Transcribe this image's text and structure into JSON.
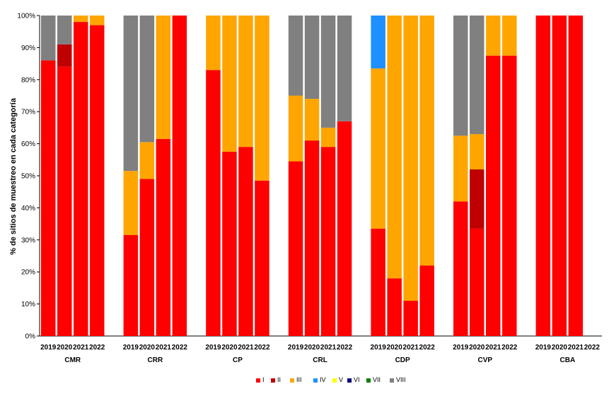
{
  "chart_data": {
    "type": "bar",
    "stacked": true,
    "title": "",
    "xlabel": "",
    "ylabel": "% de sitios de muestreo en cada categoría",
    "ylim": [
      0,
      100
    ],
    "y_ticks": [
      "0%",
      "10%",
      "20%",
      "30%",
      "40%",
      "50%",
      "60%",
      "70%",
      "80%",
      "90%",
      "100%"
    ],
    "grid": false,
    "legend_position": "bottom",
    "categories_order": [
      "I",
      "II",
      "III",
      "IV",
      "V",
      "VI",
      "VII",
      "VIII"
    ],
    "colors": {
      "I": "#ff0000",
      "II": "#c00000",
      "III": "#ffa500",
      "IV": "#1e90ff",
      "V": "#ffff00",
      "VI": "#000080",
      "VII": "#008000",
      "VIII": "#808080"
    },
    "legend": [
      {
        "key": "I",
        "label": "I"
      },
      {
        "key": "II",
        "label": "II"
      },
      {
        "key": "III",
        "label": "III"
      },
      {
        "key": "IV",
        "label": "IV"
      },
      {
        "key": "V",
        "label": "V"
      },
      {
        "key": "VI",
        "label": "VI"
      },
      {
        "key": "VII",
        "label": "VII"
      },
      {
        "key": "VIII",
        "label": "VIII"
      }
    ],
    "groups": [
      {
        "name": "CMR",
        "bars": [
          {
            "year": "2019",
            "I": 86,
            "II": 0,
            "III": 0,
            "IV": 0,
            "V": 0,
            "VI": 0,
            "VII": 0,
            "VIII": 14
          },
          {
            "year": "2020",
            "I": 84,
            "II": 7,
            "III": 0,
            "IV": 0,
            "V": 0,
            "VI": 0,
            "VII": 0,
            "VIII": 9
          },
          {
            "year": "2021",
            "I": 98,
            "II": 0,
            "III": 2,
            "IV": 0,
            "V": 0,
            "VI": 0,
            "VII": 0,
            "VIII": 0
          },
          {
            "year": "2022",
            "I": 97,
            "II": 0,
            "III": 3,
            "IV": 0,
            "V": 0,
            "VI": 0,
            "VII": 0,
            "VIII": 0
          }
        ]
      },
      {
        "name": "CRR",
        "bars": [
          {
            "year": "2019",
            "I": 31.5,
            "II": 0,
            "III": 20,
            "IV": 0,
            "V": 0,
            "VI": 0,
            "VII": 0,
            "VIII": 48.5
          },
          {
            "year": "2020",
            "I": 49,
            "II": 0,
            "III": 11.5,
            "IV": 0,
            "V": 0,
            "VI": 0,
            "VII": 0,
            "VIII": 39.5
          },
          {
            "year": "2021",
            "I": 61.5,
            "II": 0,
            "III": 38.5,
            "IV": 0,
            "V": 0,
            "VI": 0,
            "VII": 0,
            "VIII": 0
          },
          {
            "year": "2022",
            "I": 100,
            "II": 0,
            "III": 0,
            "IV": 0,
            "V": 0,
            "VI": 0,
            "VII": 0,
            "VIII": 0
          }
        ]
      },
      {
        "name": "CP",
        "bars": [
          {
            "year": "2019",
            "I": 83,
            "II": 0,
            "III": 17,
            "IV": 0,
            "V": 0,
            "VI": 0,
            "VII": 0,
            "VIII": 0
          },
          {
            "year": "2020",
            "I": 57.5,
            "II": 0,
            "III": 42.5,
            "IV": 0,
            "V": 0,
            "VI": 0,
            "VII": 0,
            "VIII": 0
          },
          {
            "year": "2021",
            "I": 59,
            "II": 0,
            "III": 41,
            "IV": 0,
            "V": 0,
            "VI": 0,
            "VII": 0,
            "VIII": 0
          },
          {
            "year": "2022",
            "I": 48.5,
            "II": 0,
            "III": 51.5,
            "IV": 0,
            "V": 0,
            "VI": 0,
            "VII": 0,
            "VIII": 0
          }
        ]
      },
      {
        "name": "CRL",
        "bars": [
          {
            "year": "2019",
            "I": 54.5,
            "II": 0,
            "III": 20.5,
            "IV": 0,
            "V": 0,
            "VI": 0,
            "VII": 0,
            "VIII": 25
          },
          {
            "year": "2020",
            "I": 61,
            "II": 0,
            "III": 13,
            "IV": 0,
            "V": 0,
            "VI": 0,
            "VII": 0,
            "VIII": 26
          },
          {
            "year": "2021",
            "I": 59,
            "II": 0,
            "III": 6,
            "IV": 0,
            "V": 0,
            "VI": 0,
            "VII": 0,
            "VIII": 35
          },
          {
            "year": "2022",
            "I": 67,
            "II": 0,
            "III": 0,
            "IV": 0,
            "V": 0,
            "VI": 0,
            "VII": 0,
            "VIII": 33
          }
        ]
      },
      {
        "name": "CDP",
        "bars": [
          {
            "year": "2019",
            "I": 33.5,
            "II": 0,
            "III": 50,
            "IV": 16.5,
            "V": 0,
            "VI": 0,
            "VII": 0,
            "VIII": 0
          },
          {
            "year": "2020",
            "I": 18,
            "II": 0,
            "III": 82,
            "IV": 0,
            "V": 0,
            "VI": 0,
            "VII": 0,
            "VIII": 0
          },
          {
            "year": "2021",
            "I": 11,
            "II": 0,
            "III": 89,
            "IV": 0,
            "V": 0,
            "VI": 0,
            "VII": 0,
            "VIII": 0
          },
          {
            "year": "2022",
            "I": 22,
            "II": 0,
            "III": 78,
            "IV": 0,
            "V": 0,
            "VI": 0,
            "VII": 0,
            "VIII": 0
          }
        ]
      },
      {
        "name": "CVP",
        "bars": [
          {
            "year": "2019",
            "I": 42,
            "II": 0,
            "III": 20.5,
            "IV": 0,
            "V": 0,
            "VI": 0,
            "VII": 0,
            "VIII": 37.5
          },
          {
            "year": "2020",
            "I": 33.5,
            "II": 18.5,
            "III": 11,
            "IV": 0,
            "V": 0,
            "VI": 0,
            "VII": 0,
            "VIII": 37
          },
          {
            "year": "2021",
            "I": 87.5,
            "II": 0,
            "III": 12.5,
            "IV": 0,
            "V": 0,
            "VI": 0,
            "VII": 0,
            "VIII": 0
          },
          {
            "year": "2022",
            "I": 87.5,
            "II": 0,
            "III": 12.5,
            "IV": 0,
            "V": 0,
            "VI": 0,
            "VII": 0,
            "VIII": 0
          }
        ]
      },
      {
        "name": "CBA",
        "bars": [
          {
            "year": "2019",
            "I": 100,
            "II": 0,
            "III": 0,
            "IV": 0,
            "V": 0,
            "VI": 0,
            "VII": 0,
            "VIII": 0
          },
          {
            "year": "2020",
            "I": 100,
            "II": 0,
            "III": 0,
            "IV": 0,
            "V": 0,
            "VI": 0,
            "VII": 0,
            "VIII": 0
          },
          {
            "year": "2021",
            "I": 100,
            "II": 0,
            "III": 0,
            "IV": 0,
            "V": 0,
            "VI": 0,
            "VII": 0,
            "VIII": 0
          },
          {
            "year": "2022",
            "I": 0,
            "II": 0,
            "III": 0,
            "IV": 0,
            "V": 0,
            "VI": 0,
            "VII": 0,
            "VIII": 0
          }
        ]
      }
    ]
  }
}
